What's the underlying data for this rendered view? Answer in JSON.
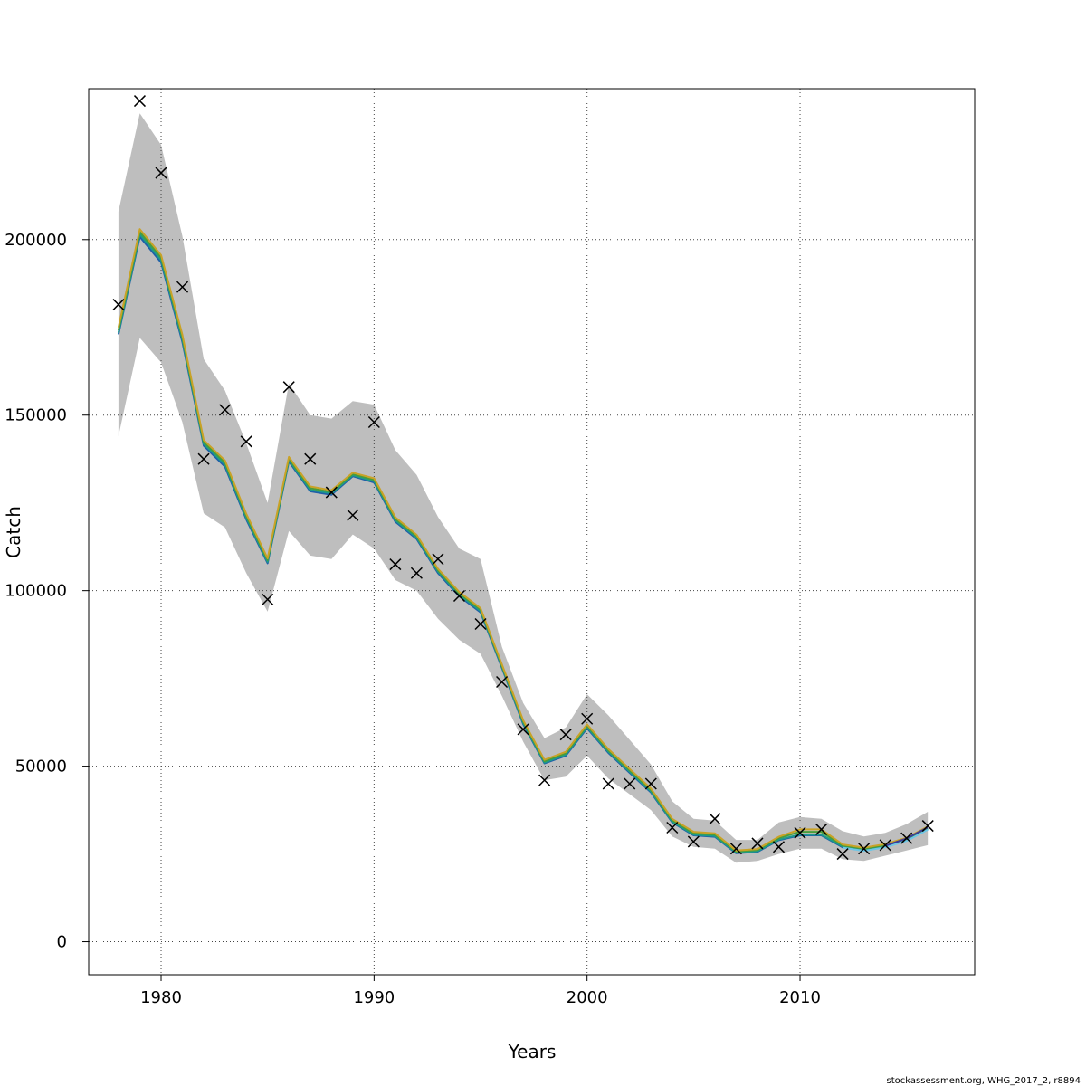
{
  "chart_data": {
    "type": "line",
    "xlabel": "Years",
    "ylabel": "Catch",
    "xlim": [
      1976.6,
      2018.2
    ],
    "ylim": [
      -9400,
      243000
    ],
    "x_ticks": [
      1980,
      1990,
      2000,
      2010
    ],
    "x_tick_labels": [
      "1980",
      "1990",
      "2000",
      "2010"
    ],
    "y_ticks": [
      0,
      50000,
      100000,
      150000,
      200000
    ],
    "y_tick_labels": [
      "0",
      "50000",
      "100000",
      "150000",
      "200000"
    ],
    "grid": true,
    "years": [
      1978,
      1979,
      1980,
      1981,
      1982,
      1983,
      1984,
      1985,
      1986,
      1987,
      1988,
      1989,
      1990,
      1991,
      1992,
      1993,
      1994,
      1995,
      1996,
      1997,
      1998,
      1999,
      2000,
      2001,
      2002,
      2003,
      2004,
      2005,
      2006,
      2007,
      2008,
      2009,
      2010,
      2011,
      2012,
      2013,
      2014,
      2015,
      2016
    ],
    "band_upper": [
      208000,
      236000,
      227000,
      201000,
      166000,
      157000,
      142000,
      125000,
      159000,
      150000,
      149000,
      154000,
      153000,
      140000,
      133000,
      121000,
      112000,
      109000,
      84000,
      68000,
      58000,
      61000,
      70500,
      64500,
      57500,
      50500,
      40000,
      35000,
      34500,
      29000,
      29000,
      34000,
      35500,
      35000,
      31500,
      30000,
      31000,
      33500,
      37000
    ],
    "band_lower": [
      144000,
      172000,
      165000,
      148000,
      122000,
      118000,
      105000,
      94000,
      117000,
      110000,
      109000,
      116000,
      112000,
      103000,
      100000,
      92000,
      86000,
      82000,
      70000,
      57000,
      46000,
      47000,
      53000,
      46500,
      42000,
      37500,
      30000,
      27000,
      26500,
      22500,
      23000,
      25000,
      26500,
      26500,
      23500,
      23000,
      24500,
      26000,
      27500
    ],
    "series": [
      {
        "color": "#1f5fa8",
        "values": [
          173000,
          200800,
          193500,
          170800,
          141300,
          135300,
          120300,
          107800,
          136800,
          128300,
          127300,
          132600,
          130800,
          119600,
          114700,
          105000,
          98400,
          93800,
          78000,
          62000,
          50800,
          53000,
          60800,
          53800,
          48100,
          42500,
          34000,
          30300,
          29900,
          25200,
          25600,
          28900,
          30300,
          30300,
          26900,
          26000,
          27000,
          28800,
          32000
        ]
      },
      {
        "color": "#1c9a8c",
        "values": [
          173500,
          201500,
          194200,
          171500,
          141800,
          135900,
          120800,
          108200,
          137200,
          128700,
          127700,
          132900,
          131200,
          120000,
          115100,
          105400,
          98800,
          94200,
          78300,
          62300,
          51000,
          53300,
          61100,
          54100,
          48400,
          42800,
          34200,
          30500,
          30100,
          25400,
          25800,
          29100,
          30500,
          30500,
          27100,
          26200,
          27200,
          29000,
          32200
        ]
      },
      {
        "color": "#4a9d3a",
        "values": [
          174200,
          202200,
          194900,
          172200,
          142300,
          136500,
          121300,
          108700,
          137600,
          129200,
          128100,
          133200,
          131600,
          120400,
          115500,
          105800,
          99200,
          94600,
          78600,
          62700,
          51400,
          53700,
          61500,
          54500,
          48800,
          43200,
          34600,
          30900,
          30500,
          25700,
          26100,
          29500,
          31300,
          31300,
          27400,
          26500,
          27500,
          29300,
          32500
        ]
      },
      {
        "color": "#c9a227",
        "values": [
          175000,
          203000,
          195600,
          172900,
          142900,
          137100,
          121900,
          109200,
          138100,
          129700,
          128600,
          133600,
          132000,
          120900,
          115900,
          106200,
          99600,
          95000,
          79000,
          63100,
          51800,
          54100,
          61900,
          54900,
          49200,
          43600,
          35000,
          31300,
          30900,
          26000,
          26400,
          29900,
          32000,
          32000,
          27700,
          26800,
          27800,
          29600,
          32800
        ]
      },
      {
        "color": "#6ec6e6",
        "values": [
          null,
          null,
          null,
          null,
          null,
          null,
          null,
          null,
          null,
          null,
          null,
          null,
          null,
          null,
          null,
          null,
          null,
          null,
          null,
          null,
          null,
          null,
          null,
          null,
          null,
          null,
          null,
          null,
          null,
          null,
          null,
          null,
          null,
          null,
          26800,
          25900,
          26900,
          28700,
          31900
        ]
      },
      {
        "color": "#3b3b9a",
        "values": [
          null,
          null,
          null,
          null,
          null,
          null,
          null,
          null,
          null,
          null,
          null,
          null,
          null,
          null,
          null,
          null,
          null,
          null,
          null,
          null,
          null,
          null,
          null,
          null,
          null,
          null,
          null,
          null,
          null,
          null,
          null,
          null,
          null,
          null,
          null,
          null,
          27300,
          29400,
          32600
        ]
      }
    ],
    "observed": [
      {
        "x": 1978,
        "y": 181500
      },
      {
        "x": 1979,
        "y": 239500
      },
      {
        "x": 1980,
        "y": 219000
      },
      {
        "x": 1981,
        "y": 186500
      },
      {
        "x": 1982,
        "y": 137500
      },
      {
        "x": 1983,
        "y": 151500
      },
      {
        "x": 1984,
        "y": 142500
      },
      {
        "x": 1985,
        "y": 97500
      },
      {
        "x": 1986,
        "y": 158000
      },
      {
        "x": 1987,
        "y": 137500
      },
      {
        "x": 1988,
        "y": 128000
      },
      {
        "x": 1989,
        "y": 121500
      },
      {
        "x": 1990,
        "y": 148000
      },
      {
        "x": 1991,
        "y": 107500
      },
      {
        "x": 1992,
        "y": 105000
      },
      {
        "x": 1993,
        "y": 109000
      },
      {
        "x": 1994,
        "y": 98500
      },
      {
        "x": 1995,
        "y": 90500
      },
      {
        "x": 1996,
        "y": 74000
      },
      {
        "x": 1997,
        "y": 60500
      },
      {
        "x": 1998,
        "y": 46000
      },
      {
        "x": 1999,
        "y": 59000
      },
      {
        "x": 2000,
        "y": 63500
      },
      {
        "x": 2001,
        "y": 45000
      },
      {
        "x": 2002,
        "y": 45000
      },
      {
        "x": 2003,
        "y": 45000
      },
      {
        "x": 2004,
        "y": 32500
      },
      {
        "x": 2005,
        "y": 28500
      },
      {
        "x": 2006,
        "y": 35000
      },
      {
        "x": 2007,
        "y": 26500
      },
      {
        "x": 2008,
        "y": 28000
      },
      {
        "x": 2009,
        "y": 27000
      },
      {
        "x": 2010,
        "y": 31000
      },
      {
        "x": 2011,
        "y": 32000
      },
      {
        "x": 2012,
        "y": 25000
      },
      {
        "x": 2013,
        "y": 26500
      },
      {
        "x": 2014,
        "y": 27500
      },
      {
        "x": 2015,
        "y": 29500
      },
      {
        "x": 2016,
        "y": 33000
      }
    ],
    "colors": {
      "band": "#bebebe",
      "grid": "#444444",
      "marker": "#000000"
    },
    "credit": "stockassessment.org, WHG_2017_2, r8894"
  }
}
